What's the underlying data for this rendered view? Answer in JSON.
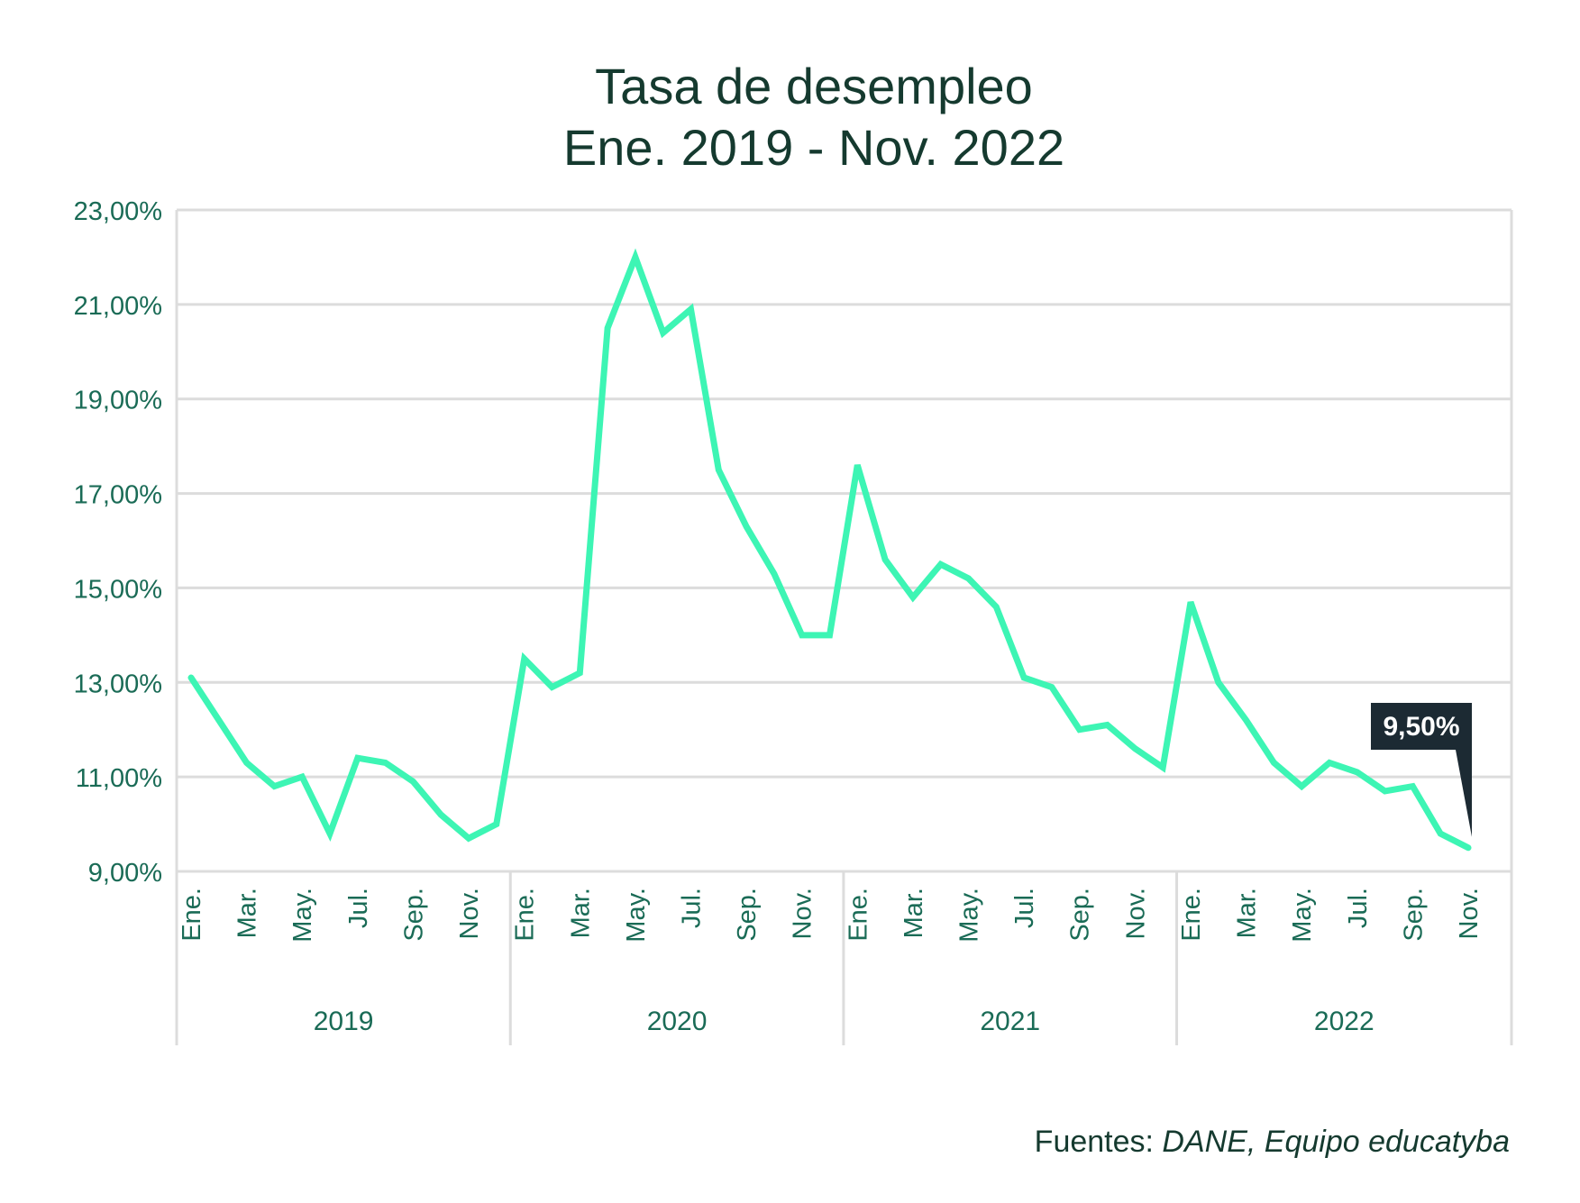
{
  "chart_data": {
    "type": "line",
    "title": "Tasa de desempleo",
    "subtitle": "Ene. 2019 - Nov. 2022",
    "ylim": [
      9,
      23
    ],
    "y_ticks": [
      "23,00%",
      "21,00%",
      "19,00%",
      "17,00%",
      "15,00%",
      "13,00%",
      "11,00%",
      "9,00%"
    ],
    "grid": true,
    "x_month_ticks": [
      "Ene.",
      "Mar.",
      "May.",
      "Jul.",
      "Sep.",
      "Nov."
    ],
    "years": [
      "2019",
      "2020",
      "2021",
      "2022"
    ],
    "series": [
      {
        "color": "#3df5b4",
        "values": [
          13.1,
          12.2,
          11.3,
          10.8,
          11.0,
          9.8,
          11.4,
          11.3,
          10.9,
          10.2,
          9.7,
          10.0,
          13.5,
          12.9,
          13.2,
          20.5,
          22.0,
          20.4,
          20.9,
          17.5,
          16.3,
          15.3,
          14.0,
          14.0,
          17.6,
          15.6,
          14.8,
          15.5,
          15.2,
          14.6,
          13.1,
          12.9,
          12.0,
          12.1,
          11.6,
          11.2,
          14.7,
          13.0,
          12.2,
          11.3,
          10.8,
          11.3,
          11.1,
          10.7,
          10.8,
          9.8,
          9.5
        ]
      }
    ],
    "annotation": {
      "label": "9,50%",
      "point_index": 46
    }
  },
  "footer": {
    "prefix": "Fuentes: ",
    "sources": "DANE, Equipo educatyba"
  },
  "colors": {
    "line": "#3df5b4",
    "text": "#153a2f",
    "axis_label": "#1a6b56",
    "grid": "#dcdcdc",
    "callout": "#1c2a33"
  }
}
